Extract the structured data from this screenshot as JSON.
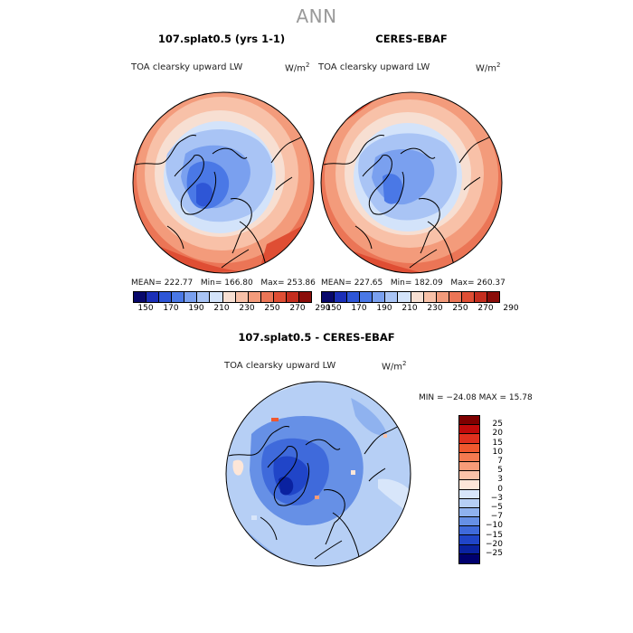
{
  "main_title": "ANN",
  "panels": [
    {
      "title": "107.splat0.5 (yrs 1-1)",
      "variable": "TOA clearsky upward LW",
      "units": "W/m",
      "units_exp": "2",
      "mean_label": "MEAN=",
      "mean": "222.77",
      "min_label": "Min=",
      "min": "166.80",
      "max_label": "Max=",
      "max": "253.86"
    },
    {
      "title": "CERES-EBAF",
      "variable": "TOA clearsky upward LW",
      "units": "W/m",
      "units_exp": "2",
      "mean_label": "MEAN=",
      "mean": "227.65",
      "min_label": "Min=",
      "min": "182.09",
      "max_label": "Max=",
      "max": "260.37"
    }
  ],
  "diff_panel": {
    "title": "107.splat0.5 - CERES-EBAF",
    "variable": "TOA clearsky upward LW",
    "units": "W/m",
    "units_exp": "2",
    "stats": "MIN = −24.08 MAX =  15.78"
  },
  "chart_data": [
    {
      "type": "heatmap",
      "projection": "polar-stereographic-north",
      "title": "107.splat0.5 (yrs 1-1)",
      "variable": "TOA clearsky upward LW",
      "units": "W/m^2",
      "mean": 222.77,
      "min": 166.8,
      "max": 253.86,
      "colorbar_ticks": [
        150,
        170,
        190,
        210,
        230,
        250,
        270,
        290
      ],
      "colorbar_colors": [
        "#08086b",
        "#1b2fb8",
        "#2e56d6",
        "#4a78e6",
        "#7aa0ef",
        "#a9c4f5",
        "#d3e3fa",
        "#f7dfd2",
        "#f8c1a8",
        "#f39b7b",
        "#eb7556",
        "#df4e34",
        "#c42d1e",
        "#8b0d0a"
      ]
    },
    {
      "type": "heatmap",
      "projection": "polar-stereographic-north",
      "title": "CERES-EBAF",
      "variable": "TOA clearsky upward LW",
      "units": "W/m^2",
      "mean": 227.65,
      "min": 182.09,
      "max": 260.37,
      "colorbar_ticks": [
        150,
        170,
        190,
        210,
        230,
        250,
        270,
        290
      ],
      "colorbar_colors": [
        "#08086b",
        "#1b2fb8",
        "#2e56d6",
        "#4a78e6",
        "#7aa0ef",
        "#a9c4f5",
        "#d3e3fa",
        "#f7dfd2",
        "#f8c1a8",
        "#f39b7b",
        "#eb7556",
        "#df4e34",
        "#c42d1e",
        "#8b0d0a"
      ]
    },
    {
      "type": "heatmap",
      "projection": "polar-stereographic-north",
      "title": "107.splat0.5 - CERES-EBAF",
      "variable": "TOA clearsky upward LW",
      "units": "W/m^2",
      "min": -24.08,
      "max": 15.78,
      "colorbar_labels": [
        "25",
        "20",
        "15",
        "10",
        "7",
        "5",
        "3",
        "0",
        "−3",
        "−5",
        "−7",
        "−10",
        "−15",
        "−20",
        "−25"
      ],
      "colorbar_colors": [
        "#7f0000",
        "#c00a0a",
        "#e0301e",
        "#f0582e",
        "#f47a50",
        "#f89b78",
        "#fbc2a8",
        "#fde6d8",
        "#d8e6fa",
        "#b6cff5",
        "#8fb2ef",
        "#6690e6",
        "#3f6adb",
        "#2045c8",
        "#0a22a0",
        "#00006e"
      ]
    }
  ]
}
